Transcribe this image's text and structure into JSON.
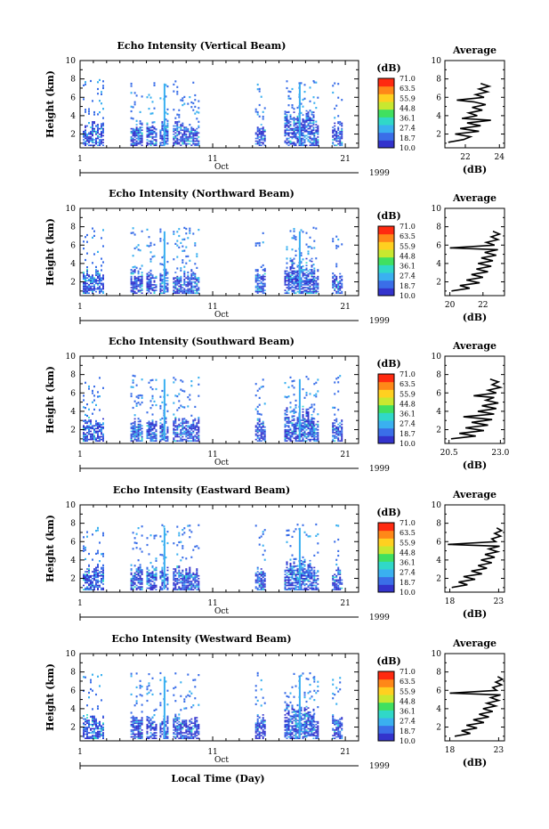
{
  "figure": {
    "xlabel": "Local Time (Day)",
    "colors": [
      "#3333cc",
      "#3a6ee8",
      "#3ab0f0",
      "#30d8c8",
      "#40e060",
      "#c8e830",
      "#ffd020",
      "#ff8818",
      "#ff2a10"
    ]
  },
  "chart_data": [
    {
      "type": "heatmap",
      "title": "Echo Intensity (Vertical Beam)",
      "ylabel": "Height (km)",
      "ylim": [
        0.5,
        10
      ],
      "yticks": [
        "2",
        "4",
        "6",
        "8",
        "10"
      ],
      "xlim": [
        1,
        22
      ],
      "xticks": [
        "1",
        "11",
        "21"
      ],
      "month": "Oct",
      "year": "1999",
      "colorbar": {
        "unit": "(dB)",
        "levels": [
          "71.0",
          "63.5",
          "55.9",
          "44.8",
          "36.1",
          "27.4",
          "18.7",
          "10.0"
        ]
      },
      "echo_periods_day": [
        [
          1.2,
          2.8
        ],
        [
          4.8,
          5.7
        ],
        [
          6.0,
          6.8
        ],
        [
          7.0,
          7.6
        ],
        [
          8.0,
          9.9
        ],
        [
          14.2,
          14.9
        ],
        [
          16.4,
          18.6
        ],
        [
          18.6,
          19.0
        ],
        [
          20.0,
          20.8
        ]
      ],
      "profile": {
        "title": "Average",
        "xlabel": "(dB)",
        "xlim": [
          20.8,
          24.3
        ],
        "xticks": [
          "22",
          "24"
        ],
        "points": [
          [
            21.0,
            1.1
          ],
          [
            21.9,
            1.4
          ],
          [
            22.3,
            1.7
          ],
          [
            21.4,
            2.0
          ],
          [
            22.8,
            2.3
          ],
          [
            21.7,
            2.6
          ],
          [
            22.9,
            2.9
          ],
          [
            22.1,
            3.2
          ],
          [
            23.5,
            3.5
          ],
          [
            21.8,
            3.7
          ],
          [
            22.7,
            4.0
          ],
          [
            22.2,
            4.3
          ],
          [
            23.0,
            4.6
          ],
          [
            22.4,
            4.9
          ],
          [
            23.2,
            5.2
          ],
          [
            22.5,
            5.5
          ],
          [
            21.5,
            5.7
          ],
          [
            23.1,
            6.0
          ],
          [
            22.6,
            6.3
          ],
          [
            23.3,
            6.6
          ],
          [
            22.8,
            6.9
          ],
          [
            23.4,
            7.2
          ],
          [
            22.9,
            7.5
          ]
        ]
      }
    },
    {
      "type": "heatmap",
      "title": "Echo Intensity (Northward Beam)",
      "ylabel": "Height (km)",
      "ylim": [
        0.5,
        10
      ],
      "yticks": [
        "2",
        "4",
        "6",
        "8",
        "10"
      ],
      "xlim": [
        1,
        22
      ],
      "xticks": [
        "1",
        "11",
        "21"
      ],
      "month": "Oct",
      "year": "1999",
      "colorbar": {
        "unit": "(dB)",
        "levels": [
          "71.0",
          "63.5",
          "55.9",
          "44.8",
          "36.1",
          "27.4",
          "18.7",
          "10.0"
        ]
      },
      "echo_periods_day": [
        [
          1.2,
          2.8
        ],
        [
          4.8,
          5.7
        ],
        [
          6.0,
          6.8
        ],
        [
          7.0,
          7.6
        ],
        [
          8.0,
          9.9
        ],
        [
          14.2,
          14.9
        ],
        [
          16.4,
          18.6
        ],
        [
          18.6,
          19.0
        ],
        [
          20.0,
          20.8
        ]
      ],
      "profile": {
        "title": "Average",
        "xlabel": "(dB)",
        "xlim": [
          19.7,
          23.3
        ],
        "xticks": [
          "20",
          "22"
        ],
        "points": [
          [
            20.1,
            1.0
          ],
          [
            21.2,
            1.3
          ],
          [
            20.6,
            1.6
          ],
          [
            21.8,
            1.9
          ],
          [
            21.0,
            2.2
          ],
          [
            22.0,
            2.5
          ],
          [
            21.3,
            2.8
          ],
          [
            22.3,
            3.1
          ],
          [
            21.6,
            3.4
          ],
          [
            22.5,
            3.7
          ],
          [
            21.7,
            4.0
          ],
          [
            22.6,
            4.3
          ],
          [
            21.9,
            4.6
          ],
          [
            22.8,
            4.9
          ],
          [
            22.1,
            5.2
          ],
          [
            22.9,
            5.5
          ],
          [
            20.0,
            5.7
          ],
          [
            22.7,
            6.0
          ],
          [
            22.2,
            6.3
          ],
          [
            22.9,
            6.6
          ],
          [
            22.5,
            6.9
          ],
          [
            23.0,
            7.2
          ],
          [
            22.6,
            7.5
          ]
        ]
      }
    },
    {
      "type": "heatmap",
      "title": "Echo Intensity (Southward Beam)",
      "ylabel": "Height (km)",
      "ylim": [
        0.5,
        10
      ],
      "yticks": [
        "2",
        "4",
        "6",
        "8",
        "10"
      ],
      "xlim": [
        1,
        22
      ],
      "xticks": [
        "1",
        "11",
        "21"
      ],
      "month": "Oct",
      "year": "1999",
      "colorbar": {
        "unit": "(dB)",
        "levels": [
          "71.0",
          "63.5",
          "55.9",
          "44.8",
          "36.1",
          "27.4",
          "18.7",
          "10.0"
        ]
      },
      "echo_periods_day": [
        [
          1.2,
          2.8
        ],
        [
          4.8,
          5.7
        ],
        [
          6.0,
          6.8
        ],
        [
          7.0,
          7.6
        ],
        [
          8.0,
          9.9
        ],
        [
          14.2,
          14.9
        ],
        [
          16.4,
          18.6
        ],
        [
          18.6,
          19.0
        ],
        [
          20.0,
          20.8
        ]
      ],
      "profile": {
        "title": "Average",
        "xlabel": "(dB)",
        "xlim": [
          20.3,
          23.2
        ],
        "xticks": [
          "20.5",
          "23.0"
        ],
        "points": [
          [
            20.6,
            1.0
          ],
          [
            21.8,
            1.3
          ],
          [
            21.0,
            1.6
          ],
          [
            22.2,
            1.9
          ],
          [
            21.3,
            2.2
          ],
          [
            22.4,
            2.5
          ],
          [
            21.6,
            2.8
          ],
          [
            22.6,
            3.1
          ],
          [
            21.2,
            3.4
          ],
          [
            22.7,
            3.7
          ],
          [
            21.9,
            4.0
          ],
          [
            22.8,
            4.3
          ],
          [
            22.1,
            4.6
          ],
          [
            22.9,
            4.9
          ],
          [
            22.3,
            5.2
          ],
          [
            22.7,
            5.5
          ],
          [
            21.7,
            5.7
          ],
          [
            22.8,
            6.0
          ],
          [
            22.4,
            6.3
          ],
          [
            23.0,
            6.6
          ],
          [
            22.6,
            6.9
          ],
          [
            22.9,
            7.2
          ],
          [
            22.5,
            7.5
          ]
        ]
      }
    },
    {
      "type": "heatmap",
      "title": "Echo Intensity (Eastward Beam)",
      "ylabel": "Height (km)",
      "ylim": [
        0.5,
        10
      ],
      "yticks": [
        "2",
        "4",
        "6",
        "8",
        "10"
      ],
      "xlim": [
        1,
        22
      ],
      "xticks": [
        "1",
        "11",
        "21"
      ],
      "month": "Oct",
      "year": "1999",
      "colorbar": {
        "unit": "(dB)",
        "levels": [
          "71.0",
          "63.5",
          "55.9",
          "44.8",
          "36.1",
          "27.4",
          "18.7",
          "10.0"
        ]
      },
      "echo_periods_day": [
        [
          1.2,
          2.8
        ],
        [
          4.8,
          5.7
        ],
        [
          6.0,
          6.8
        ],
        [
          7.0,
          7.6
        ],
        [
          8.0,
          9.9
        ],
        [
          14.2,
          14.9
        ],
        [
          16.4,
          18.6
        ],
        [
          18.6,
          19.0
        ],
        [
          20.0,
          20.8
        ]
      ],
      "profile": {
        "title": "Average",
        "xlabel": "(dB)",
        "xlim": [
          17.5,
          23.6
        ],
        "xticks": [
          "18",
          "23"
        ],
        "points": [
          [
            18.2,
            1.0
          ],
          [
            19.8,
            1.3
          ],
          [
            18.9,
            1.6
          ],
          [
            20.6,
            1.9
          ],
          [
            19.4,
            2.2
          ],
          [
            21.3,
            2.5
          ],
          [
            20.2,
            2.8
          ],
          [
            21.8,
            3.1
          ],
          [
            20.9,
            3.4
          ],
          [
            22.3,
            3.7
          ],
          [
            21.2,
            4.0
          ],
          [
            22.6,
            4.3
          ],
          [
            21.6,
            4.6
          ],
          [
            22.9,
            4.9
          ],
          [
            22.0,
            5.2
          ],
          [
            23.1,
            5.5
          ],
          [
            17.8,
            5.7
          ],
          [
            22.7,
            6.0
          ],
          [
            22.3,
            6.3
          ],
          [
            23.2,
            6.6
          ],
          [
            22.6,
            6.9
          ],
          [
            23.3,
            7.2
          ],
          [
            22.8,
            7.5
          ]
        ]
      }
    },
    {
      "type": "heatmap",
      "title": "Echo Intensity (Westward Beam)",
      "ylabel": "Height (km)",
      "ylim": [
        0.5,
        10
      ],
      "yticks": [
        "2",
        "4",
        "6",
        "8",
        "10"
      ],
      "xlim": [
        1,
        22
      ],
      "xticks": [
        "1",
        "11",
        "21"
      ],
      "month": "Oct",
      "year": "1999",
      "colorbar": {
        "unit": "(dB)",
        "levels": [
          "71.0",
          "63.5",
          "55.9",
          "44.8",
          "36.1",
          "27.4",
          "18.7",
          "10.0"
        ]
      },
      "echo_periods_day": [
        [
          1.2,
          2.8
        ],
        [
          4.8,
          5.7
        ],
        [
          6.0,
          6.8
        ],
        [
          7.0,
          7.6
        ],
        [
          8.0,
          9.9
        ],
        [
          14.2,
          14.9
        ],
        [
          16.4,
          18.6
        ],
        [
          18.6,
          19.0
        ],
        [
          20.0,
          20.8
        ]
      ],
      "profile": {
        "title": "Average",
        "xlabel": "(dB)",
        "xlim": [
          17.5,
          23.6
        ],
        "xticks": [
          "18",
          "23"
        ],
        "points": [
          [
            18.5,
            1.0
          ],
          [
            20.1,
            1.3
          ],
          [
            19.2,
            1.6
          ],
          [
            20.8,
            1.9
          ],
          [
            19.7,
            2.2
          ],
          [
            21.5,
            2.5
          ],
          [
            20.4,
            2.8
          ],
          [
            22.0,
            3.1
          ],
          [
            21.0,
            3.4
          ],
          [
            22.4,
            3.7
          ],
          [
            21.4,
            4.0
          ],
          [
            22.7,
            4.3
          ],
          [
            21.8,
            4.6
          ],
          [
            23.0,
            4.9
          ],
          [
            22.2,
            5.2
          ],
          [
            23.2,
            5.5
          ],
          [
            18.0,
            5.7
          ],
          [
            22.8,
            6.0
          ],
          [
            22.4,
            6.3
          ],
          [
            23.3,
            6.6
          ],
          [
            22.7,
            6.9
          ],
          [
            23.4,
            7.2
          ],
          [
            22.9,
            7.5
          ]
        ]
      }
    }
  ]
}
